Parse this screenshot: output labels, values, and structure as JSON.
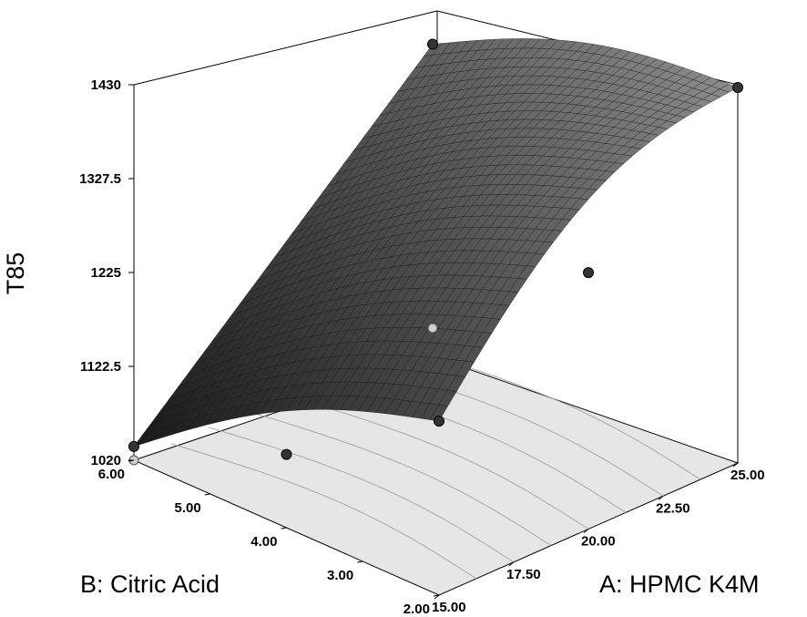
{
  "chart_data": {
    "type": "surface3d",
    "title": "",
    "zlabel": "T85",
    "xlabel": "A: HPMC K4M",
    "ylabel": "B: Citric Acid",
    "x_ticks": [
      "15.00",
      "17.50",
      "20.00",
      "22.50",
      "25.00"
    ],
    "y_ticks": [
      "2.00",
      "3.00",
      "4.00",
      "5.00",
      "6.00"
    ],
    "z_ticks": [
      "1020",
      "1122.5",
      "1225",
      "1327.5",
      "1430"
    ],
    "xlim": [
      15,
      25
    ],
    "ylim": [
      2,
      6
    ],
    "zlim": [
      1020,
      1430
    ],
    "design_points": [
      {
        "x": 15,
        "y": 6,
        "z": 1035
      },
      {
        "x": 25,
        "y": 2,
        "z": 1430
      },
      {
        "x": 25,
        "y": 6,
        "z": 1330
      },
      {
        "x": 15,
        "y": 2,
        "z": 1210
      },
      {
        "x": 20,
        "y": 2,
        "z": 1300
      },
      {
        "x": 15,
        "y": 4,
        "z": 1100
      }
    ],
    "colors": {
      "surface_dark": "#1a1a1a",
      "surface_light": "#9a9a9a",
      "floor": "#e6e6e6",
      "contour": "#a8a8a8",
      "point": "#333333"
    }
  }
}
